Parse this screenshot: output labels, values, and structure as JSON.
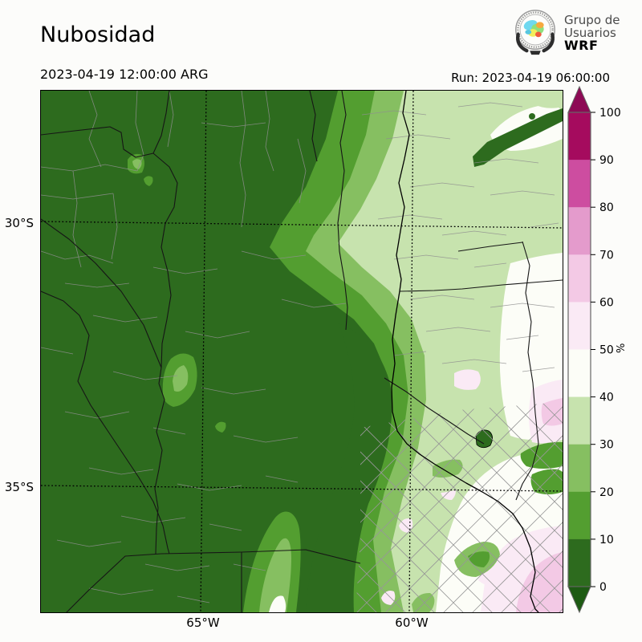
{
  "header": {
    "title": "Nubosidad",
    "valid_time": "2023-04-19 12:00:00 ARG",
    "run_label": "Run: 2023-04-19 06:00:00"
  },
  "logo": {
    "line1": "Grupo de",
    "line2": "Usuarios",
    "line3": "WRF"
  },
  "map_axes": {
    "lat": [
      "30°S",
      "35°S"
    ],
    "lon": [
      "65°W",
      "60°W"
    ]
  },
  "colorbar": {
    "unit": "%",
    "over_color": "#8d0a55",
    "under_color": "#1d5a13",
    "ticks": [
      0,
      10,
      20,
      30,
      40,
      50,
      60,
      70,
      80,
      90,
      100
    ],
    "segments": [
      {
        "from": 90,
        "to": 100,
        "color": "#a50b5e"
      },
      {
        "from": 80,
        "to": 90,
        "color": "#cd4da0"
      },
      {
        "from": 70,
        "to": 80,
        "color": "#e49bcc"
      },
      {
        "from": 60,
        "to": 70,
        "color": "#f3c9e5"
      },
      {
        "from": 50,
        "to": 60,
        "color": "#faeaf5"
      },
      {
        "from": 40,
        "to": 50,
        "color": "#fcfdf7"
      },
      {
        "from": 30,
        "to": 40,
        "color": "#c7e3ae"
      },
      {
        "from": 20,
        "to": 30,
        "color": "#86bf61"
      },
      {
        "from": 10,
        "to": 20,
        "color": "#539e30"
      },
      {
        "from": 0,
        "to": 10,
        "color": "#2d6b1e"
      }
    ]
  },
  "chart_data": {
    "type": "heatmap",
    "title": "Nubosidad",
    "variable": "Cloud cover",
    "unit": "%",
    "valid_time": "2023-04-19 12:00:00 ARG",
    "model_run": "2023-04-19 06:00:00",
    "levels": [
      0,
      10,
      20,
      30,
      40,
      50,
      60,
      70,
      80,
      90,
      100
    ],
    "palette": [
      "#2d6b1e",
      "#539e30",
      "#86bf61",
      "#c7e3ae",
      "#fcfdf7",
      "#faeaf5",
      "#f3c9e5",
      "#e49bcc",
      "#cd4da0",
      "#a50b5e"
    ],
    "grid_lat": [
      "30°S",
      "35°S"
    ],
    "grid_lon": [
      "65°W",
      "60°W"
    ],
    "legend_position": "right",
    "description": "Cloud cover mostly 0-10% over the west and center; graded bands up to 40% toward the northeast; 40-70% white and pink patches in the southeast near the Rio de la Plata."
  }
}
